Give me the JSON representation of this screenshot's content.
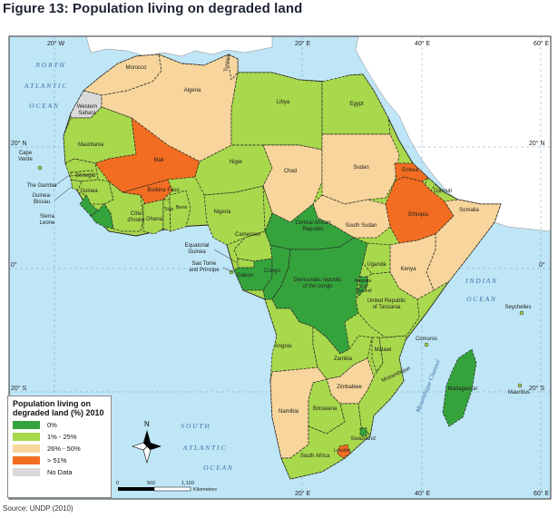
{
  "title": "Figure 13: Population living on degraded land",
  "source": "Source: UNDP (2010)",
  "colors": {
    "ocean": "#bfe6f6",
    "cat_0": "#35a33c",
    "cat_1_25": "#a8d84c",
    "cat_26_50": "#f8d59c",
    "cat_51": "#f26d21",
    "no_data": "#d9d9d9",
    "non_africa": "#ffffff"
  },
  "graticule": {
    "top": [
      "20° W",
      "20° E",
      "40° E",
      "60° E"
    ],
    "bottom": [
      "20° E",
      "40° E",
      "60° E"
    ],
    "left": [
      "20° N",
      "0°",
      "20° S"
    ],
    "right": [
      "20° N",
      "0°",
      "20° S"
    ]
  },
  "oceans": {
    "north_atlantic": [
      "N O R T H",
      "A T L A N T I C",
      "O C E A N"
    ],
    "south_atlantic": [
      "S O U T H",
      "A T L A N T I C",
      "O C E A N"
    ],
    "indian": [
      "I N D I A N",
      "O C E A N"
    ]
  },
  "mozambique_channel": "Mozambique Channel",
  "legend": {
    "title": "Population living on degraded land (%) 2010",
    "items": [
      {
        "label": "0%",
        "color": "#35a33c"
      },
      {
        "label": "1% - 25%",
        "color": "#a8d84c"
      },
      {
        "label": "26% - 50%",
        "color": "#f8d59c"
      },
      {
        "label": "> 51%",
        "color": "#f26d21"
      },
      {
        "label": "No Data",
        "color": "#d9d9d9"
      }
    ]
  },
  "scale_bar": {
    "ticks": [
      "0",
      "560",
      "1,120"
    ],
    "unit": "Kilometres"
  },
  "north_label": "N",
  "countries": [
    {
      "name": "Morocco",
      "category": "26% - 50%"
    },
    {
      "name": "Algeria",
      "category": "26% - 50%"
    },
    {
      "name": "Tunisia",
      "category": "26% - 50%"
    },
    {
      "name": "Libya",
      "category": "1% - 25%"
    },
    {
      "name": "Egypt",
      "category": "1% - 25%"
    },
    {
      "name": "Western Sahara",
      "category": "No Data"
    },
    {
      "name": "Mauritania",
      "category": "1% - 25%"
    },
    {
      "name": "Mali",
      "category": "> 51%"
    },
    {
      "name": "Niger",
      "category": "1% - 25%"
    },
    {
      "name": "Chad",
      "category": "26% - 50%"
    },
    {
      "name": "Sudan",
      "category": "26% - 50%"
    },
    {
      "name": "Eritrea",
      "category": "> 51%"
    },
    {
      "name": "Ethiopia",
      "category": "> 51%"
    },
    {
      "name": "Somalia",
      "category": "26% - 50%"
    },
    {
      "name": "South Sudan",
      "category": "26% - 50%"
    },
    {
      "name": "Central African Republic",
      "category": "0%"
    },
    {
      "name": "Nigeria",
      "category": "1% - 25%"
    },
    {
      "name": "Cameroon",
      "category": "1% - 25%"
    },
    {
      "name": "Senegal",
      "category": "1% - 25%"
    },
    {
      "name": "The Gambia",
      "category": "1% - 25%"
    },
    {
      "name": "Guinea-Bissau",
      "category": "1% - 25%"
    },
    {
      "name": "Guinea",
      "category": "1% - 25%"
    },
    {
      "name": "Sierra Leone",
      "category": "0%"
    },
    {
      "name": "Liberia",
      "category": "0%"
    },
    {
      "name": "Côte d'Ivoire",
      "category": "1% - 25%"
    },
    {
      "name": "Ghana",
      "category": "1% - 25%"
    },
    {
      "name": "Burkina Faso",
      "category": "> 51%"
    },
    {
      "name": "Benin",
      "category": "1% - 25%"
    },
    {
      "name": "Equatorial Guinea",
      "category": "1% - 25%"
    },
    {
      "name": "Gabon",
      "category": "0%"
    },
    {
      "name": "Congo",
      "category": "0%"
    },
    {
      "name": "Democratic republic of the congo",
      "category": "0%"
    },
    {
      "name": "Uganda",
      "category": "1% - 25%"
    },
    {
      "name": "Kenya",
      "category": "26% - 50%"
    },
    {
      "name": "Rwanda",
      "category": "0%"
    },
    {
      "name": "Burundi",
      "category": "0%"
    },
    {
      "name": "United Republic of Tanzania",
      "category": "1% - 25%"
    },
    {
      "name": "Angola",
      "category": "1% - 25%"
    },
    {
      "name": "Zambia",
      "category": "1% - 25%"
    },
    {
      "name": "Malawi",
      "category": "1% - 25%"
    },
    {
      "name": "Mozambique",
      "category": "1% - 25%"
    },
    {
      "name": "Zimbabwe",
      "category": "26% - 50%"
    },
    {
      "name": "Namibia",
      "category": "26% - 50%"
    },
    {
      "name": "Botswana",
      "category": "1% - 25%"
    },
    {
      "name": "South Africa",
      "category": "1% - 25%"
    },
    {
      "name": "Lesotho",
      "category": "> 51%"
    },
    {
      "name": "Swaziland",
      "category": "0%"
    },
    {
      "name": "Madagascar",
      "category": "0%"
    }
  ],
  "labels": {
    "morocco": "Morocco",
    "algeria": "Algeria",
    "tunisia": "Tunisia",
    "libya": "Libya",
    "egypt": "Egypt",
    "western_sahara": [
      "Western",
      "Sahara"
    ],
    "mauritania": "Mauritania",
    "mali": "Mali",
    "niger": "Niger",
    "chad": "Chad",
    "sudan": "Sudan",
    "eritrea": "Eritrea",
    "djibouti": "Djibouti",
    "ethiopia": "Ethiopia",
    "somalia": "Somalia",
    "south_sudan": "South Sudan",
    "car": [
      "Central African",
      "Republic"
    ],
    "nigeria": "Nigeria",
    "cameroon": "Cameroon",
    "senegal": "Senegal",
    "gambia": "The Gambia",
    "guinea_bissau": [
      "Guinea-",
      "Bissau"
    ],
    "guinea": "Guinea",
    "sierra_leone": [
      "Sierra",
      "Leone"
    ],
    "cote": [
      "Côte",
      "d'Ivoire"
    ],
    "ghana": "Ghana",
    "togo": "Togo",
    "benin": "Benin",
    "burkina": "Burkina Faso",
    "eq_guinea": [
      "Equatorial",
      "Guinea"
    ],
    "sao_tome": [
      "Sao Tome",
      "and Principe"
    ],
    "gabon": "Gabon",
    "congo": "Congo",
    "drc": [
      "Democratic republic",
      "of the congo"
    ],
    "uganda": "Uganda",
    "kenya": "Kenya",
    "rwanda": "Rwanda",
    "burundi": "Burundi",
    "tanzania": [
      "United Republic",
      "of Tanzania"
    ],
    "angola": "Angola",
    "zambia": "Zambia",
    "malawi": "Malawi",
    "mozambique": "Mozambique",
    "zimbabwe": "Zimbabwe",
    "namibia": "Namibia",
    "botswana": "Botswana",
    "south_africa": "South Africa",
    "lesotho": "Lesotho",
    "swaziland": "Swaziland",
    "madagascar": "Madagascar",
    "comoros": "Comoros",
    "mauritius": "Mauritius",
    "seychelles": "Seychelles",
    "cape_verde": [
      "Cape",
      "Verde"
    ]
  }
}
